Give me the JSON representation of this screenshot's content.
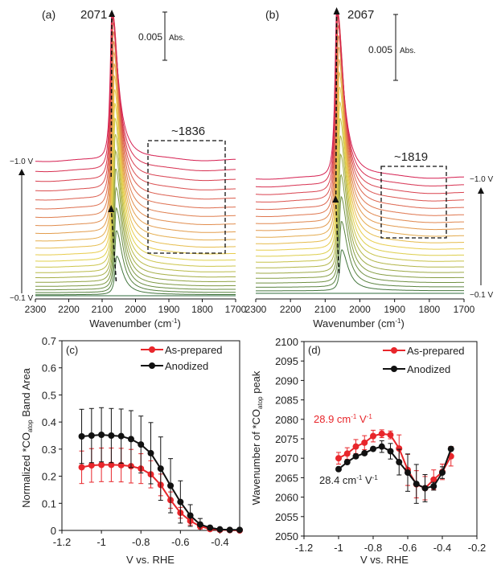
{
  "colors": {
    "as_prepared": "#e8262b",
    "anodized": "#111111",
    "spectra_low": "#2f6b3c",
    "spectra_mid": "#e9d54c",
    "spectra_high": "#d51f50"
  },
  "chart_data": [
    {
      "panel": "(a)",
      "type": "line",
      "xlabel": "Wavenumber (cm",
      "xlabel_sup": "-1",
      "xlabel_end": ")",
      "xlim": [
        2300,
        1700
      ],
      "xticks": [
        "2300",
        "2200",
        "2100",
        "2000",
        "1900",
        "1800",
        "1700"
      ],
      "peak_label": "2071",
      "peak_wavenumber": 2071,
      "box_label": "~1836",
      "scale_value": "0.005",
      "scale_unit": "Abs.",
      "potential_top": "−1.0 V",
      "potential_bottom": "−0.1 V",
      "spectra_count": 22
    },
    {
      "panel": "(b)",
      "type": "line",
      "xlabel": "Wavenumber (cm",
      "xlabel_sup": "-1",
      "xlabel_end": ")",
      "xlim": [
        2300,
        1700
      ],
      "xticks": [
        "2300",
        "2200",
        "2100",
        "2000",
        "1900",
        "1800",
        "1700"
      ],
      "peak_label": "2067",
      "peak_wavenumber": 2067,
      "box_label": "~1819",
      "scale_value": "0.005",
      "scale_unit": "Abs.",
      "potential_top": "−1.0 V",
      "potential_bottom": "−0.1 V",
      "spectra_count": 20
    },
    {
      "panel": "(c)",
      "type": "line",
      "xlabel": "V vs. RHE",
      "ylabel_pre": "Normalized *CO",
      "ylabel_sub": "atop",
      "ylabel_post": " Band Area",
      "xlim": [
        -1.2,
        -0.3
      ],
      "ylim": [
        0,
        0.7
      ],
      "xticks": [
        -1.2,
        -1,
        -0.8,
        -0.6,
        -0.4
      ],
      "xtick_labels": [
        "-1.2",
        "-1",
        "-0.8",
        "-0.6",
        "-0.4"
      ],
      "yticks": [
        0,
        0.1,
        0.2,
        0.3,
        0.4,
        0.5,
        0.6,
        0.7
      ],
      "ytick_labels": [
        "0",
        "0.1",
        "0.2",
        "0.3",
        "0.4",
        "0.5",
        "0.6",
        "0.7"
      ],
      "legend_position": "top-right",
      "x": [
        -1.1,
        -1.05,
        -1,
        -0.95,
        -0.9,
        -0.85,
        -0.8,
        -0.75,
        -0.7,
        -0.65,
        -0.6,
        -0.55,
        -0.5,
        -0.45,
        -0.4,
        -0.35,
        -0.3
      ],
      "series": [
        {
          "name": "As-prepared",
          "color_key": "as_prepared",
          "values": [
            0.233,
            0.24,
            0.242,
            0.242,
            0.241,
            0.237,
            0.228,
            0.207,
            0.168,
            0.112,
            0.065,
            0.035,
            0.015,
            0.005,
            0.002,
            0.001,
            0.0
          ],
          "errors": [
            0.06,
            0.062,
            0.062,
            0.062,
            0.062,
            0.062,
            0.055,
            0.05,
            0.04,
            0.03,
            0.02,
            0.015,
            0.01,
            0.005,
            0.003,
            0.002,
            0.001
          ]
        },
        {
          "name": "Anodized",
          "color_key": "anodized",
          "values": [
            0.347,
            0.35,
            0.353,
            0.35,
            0.348,
            0.337,
            0.317,
            0.285,
            0.228,
            0.165,
            0.105,
            0.055,
            0.022,
            0.01,
            0.004,
            0.002,
            0.002
          ],
          "errors": [
            0.1,
            0.1,
            0.1,
            0.1,
            0.1,
            0.105,
            0.105,
            0.113,
            0.117,
            0.1,
            0.078,
            0.04,
            0.022,
            0.005,
            0.003,
            0.002,
            0.002
          ]
        }
      ]
    },
    {
      "panel": "(d)",
      "type": "line",
      "xlabel": "V vs. RHE",
      "ylabel_pre": "Wavenumber of *CO",
      "ylabel_sub": "atop",
      "ylabel_post": " peak",
      "xlim": [
        -1.2,
        -0.2
      ],
      "ylim": [
        2050,
        2100
      ],
      "xticks": [
        -1.2,
        -1,
        -0.8,
        -0.6,
        -0.4,
        -0.2
      ],
      "xtick_labels": [
        "-1.2",
        "-1",
        "-0.8",
        "-0.6",
        "-0.4",
        "-0.2"
      ],
      "yticks": [
        2050,
        2055,
        2060,
        2065,
        2070,
        2075,
        2080,
        2085,
        2090,
        2095,
        2100
      ],
      "ytick_labels": [
        "2050",
        "2055",
        "2060",
        "2065",
        "2070",
        "2075",
        "2080",
        "2085",
        "2090",
        "2095",
        "2100"
      ],
      "legend_position": "top-right",
      "x": [
        -1,
        -0.95,
        -0.9,
        -0.85,
        -0.8,
        -0.75,
        -0.7,
        -0.65,
        -0.6,
        -0.55,
        -0.5,
        -0.45,
        -0.4,
        -0.35
      ],
      "series": [
        {
          "name": "As-prepared",
          "color_key": "as_prepared",
          "values": [
            2070,
            2071.2,
            2073,
            2074,
            2075.7,
            2076.3,
            2076,
            2072.5,
            2067,
            2063.3,
            2062.3,
            2064.5,
            2066.5,
            2070.5
          ],
          "errors": [
            1.5,
            1.5,
            1.8,
            1.8,
            1.5,
            1,
            1,
            3.5,
            4,
            3.5,
            3,
            2.5,
            2,
            2.5
          ],
          "annotation": "28.9 cm",
          "annotation_sup1": "-1",
          "annotation_mid": " V",
          "annotation_sup2": "-1"
        },
        {
          "name": "Anodized",
          "color_key": "anodized",
          "values": [
            2067.2,
            2069,
            2070.5,
            2071.3,
            2072.4,
            2073,
            2071.8,
            2069,
            2066.3,
            2063.4,
            2062.3,
            2062.8,
            2066.3,
            2072.4
          ],
          "errors": [
            0.3,
            0.3,
            0.3,
            0.3,
            0.3,
            1.5,
            2,
            3.3,
            4.8,
            5,
            3.5,
            1,
            1.5,
            0.5
          ],
          "annotation": "28.4 cm",
          "annotation_sup1": "-1",
          "annotation_mid": " V",
          "annotation_sup2": "-1"
        }
      ]
    }
  ]
}
